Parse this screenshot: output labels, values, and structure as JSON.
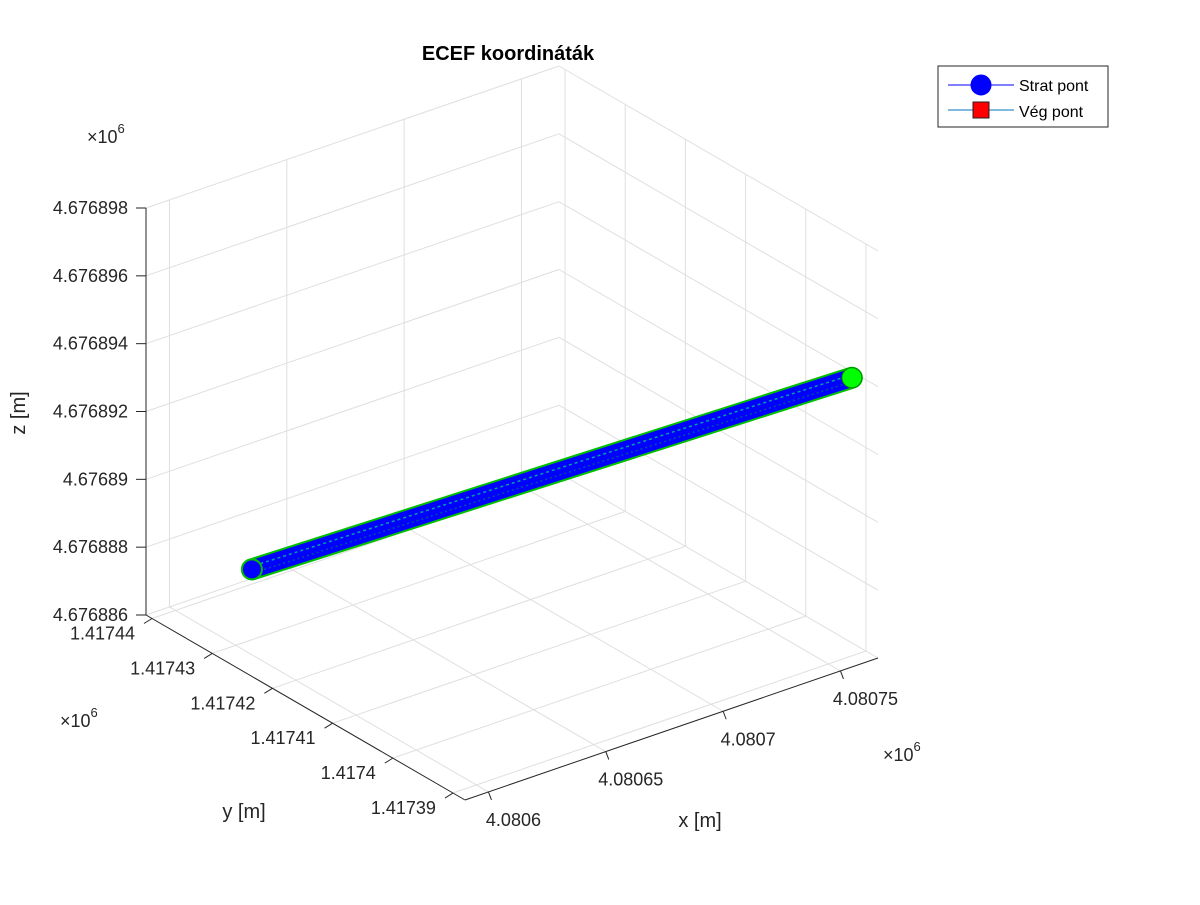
{
  "chart_data": {
    "type": "line3d",
    "title": "ECEF koordináták",
    "xlabel": "x [m]",
    "ylabel": "y [m]",
    "zlabel": "z [m]",
    "x_ticks": [
      "4.0806",
      "4.08065",
      "4.0807",
      "4.08075"
    ],
    "y_ticks": [
      "1.41739",
      "1.4174",
      "1.41741",
      "1.41742",
      "1.41743",
      "1.41744"
    ],
    "z_ticks": [
      "4.676886",
      "4.676888",
      "4.67689",
      "4.676892",
      "4.676894",
      "4.676896",
      "4.676898"
    ],
    "x_exponent_base": "×10",
    "x_exponent_power": "6",
    "y_exponent_base": "×10",
    "y_exponent_power": "6",
    "z_exponent_base": "×10",
    "z_exponent_power": "6",
    "grid": true,
    "legend_position": "top-right",
    "series": [
      {
        "name": "Strat pont",
        "marker": "circle",
        "color": "#0000ff",
        "start_marker_color": "#00ff00",
        "line_color": "#0000ff",
        "outline_color": "#00c000",
        "start": {
          "x": 4080760,
          "y": 1417390,
          "z": 4676894.2
        },
        "end": {
          "x": 4080630,
          "y": 1417439,
          "z": 4676886.6
        }
      },
      {
        "name": "Vég pont",
        "marker": "square",
        "color": "#ff0000",
        "line_color": "#0072bd"
      }
    ]
  }
}
